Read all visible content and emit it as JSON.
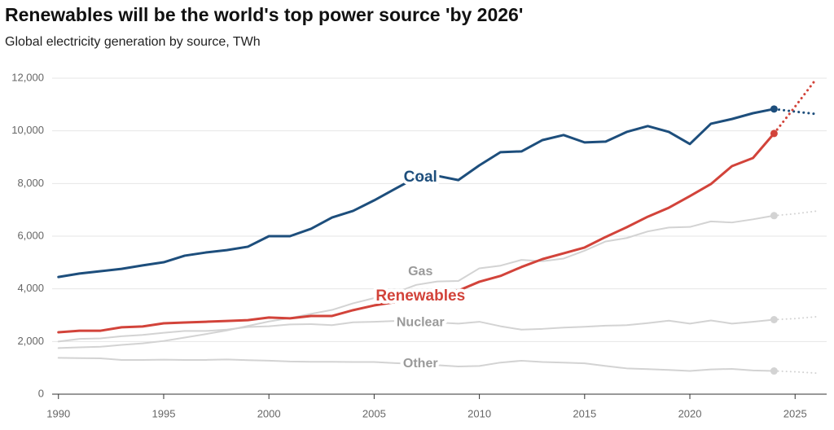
{
  "chart_data": {
    "type": "line",
    "title": "Renewables will be the world's top power source 'by 2026'",
    "subtitle": "Global electricity generation by source, TWh",
    "x": [
      1990,
      1991,
      1992,
      1993,
      1994,
      1995,
      1996,
      1997,
      1998,
      1999,
      2000,
      2001,
      2002,
      2003,
      2004,
      2005,
      2006,
      2007,
      2008,
      2009,
      2010,
      2011,
      2012,
      2013,
      2014,
      2015,
      2016,
      2017,
      2018,
      2019,
      2020,
      2021,
      2022,
      2023,
      2024,
      2025,
      2026
    ],
    "dotted_from_x": 2024,
    "series": [
      {
        "name": "Coal",
        "color": "#1d4e7c",
        "label_color": "#1d4e7c",
        "values": [
          4450,
          4580,
          4670,
          4760,
          4890,
          5010,
          5260,
          5380,
          5470,
          5600,
          6000,
          6000,
          6280,
          6710,
          6960,
          7360,
          7800,
          8230,
          8290,
          8130,
          8690,
          9190,
          9220,
          9650,
          9840,
          9560,
          9590,
          9960,
          10180,
          9960,
          9500,
          10270,
          10450,
          10670,
          10830,
          10730,
          10640
        ]
      },
      {
        "name": "Gas",
        "color": "#d3d3d3",
        "label_color": "#9a9a9a",
        "values": [
          1750,
          1780,
          1800,
          1870,
          1930,
          2020,
          2150,
          2280,
          2420,
          2590,
          2760,
          2890,
          3050,
          3200,
          3450,
          3650,
          3850,
          4150,
          4280,
          4300,
          4780,
          4880,
          5100,
          5050,
          5150,
          5450,
          5800,
          5930,
          6180,
          6330,
          6350,
          6560,
          6520,
          6640,
          6780,
          6850,
          6950
        ]
      },
      {
        "name": "Renewables",
        "color": "#d2433a",
        "label_color": "#d2433a",
        "values": [
          2350,
          2410,
          2410,
          2540,
          2570,
          2690,
          2720,
          2750,
          2780,
          2810,
          2910,
          2880,
          2970,
          2970,
          3190,
          3370,
          3500,
          3710,
          3870,
          3930,
          4270,
          4490,
          4830,
          5130,
          5350,
          5570,
          5970,
          6340,
          6740,
          7080,
          7520,
          7980,
          8660,
          8970,
          9900,
          10920,
          11970
        ]
      },
      {
        "name": "Nuclear",
        "color": "#d3d3d3",
        "label_color": "#9a9a9a",
        "values": [
          2000,
          2100,
          2120,
          2200,
          2250,
          2330,
          2400,
          2400,
          2450,
          2550,
          2580,
          2650,
          2660,
          2620,
          2730,
          2750,
          2780,
          2720,
          2720,
          2680,
          2750,
          2580,
          2450,
          2480,
          2530,
          2560,
          2600,
          2620,
          2700,
          2790,
          2680,
          2800,
          2680,
          2750,
          2830,
          2870,
          2940
        ]
      },
      {
        "name": "Other",
        "color": "#d3d3d3",
        "label_color": "#9a9a9a",
        "values": [
          1380,
          1370,
          1360,
          1300,
          1300,
          1310,
          1300,
          1300,
          1320,
          1290,
          1270,
          1240,
          1230,
          1230,
          1220,
          1220,
          1180,
          1150,
          1100,
          1050,
          1070,
          1200,
          1270,
          1220,
          1200,
          1170,
          1070,
          980,
          950,
          920,
          880,
          940,
          960,
          900,
          880,
          850,
          800
        ]
      }
    ],
    "xlim": [
      1989.7,
      2026.5
    ],
    "xticks": [
      1990,
      1995,
      2000,
      2005,
      2010,
      2015,
      2020,
      2025
    ],
    "ylim": [
      0,
      12000
    ],
    "yticks": [
      0,
      {
        "value": 2000,
        "label": "2,000"
      },
      {
        "value": 4000,
        "label": "4,000"
      },
      {
        "value": 6000,
        "label": "6,000"
      },
      {
        "value": 8000,
        "label": "8,000"
      },
      {
        "value": 10000,
        "label": "10,000"
      },
      {
        "value": 12000,
        "label": "12,000"
      }
    ],
    "grid": true
  }
}
